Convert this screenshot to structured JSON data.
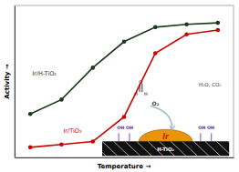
{
  "chart_data": {
    "type": "line",
    "x": [
      1,
      2,
      3,
      4,
      5,
      6,
      7
    ],
    "series": [
      {
        "name": "Ir/H-TiO₂",
        "color": "#1a3a1a",
        "marker": "circle",
        "values": [
          0.3,
          0.4,
          0.62,
          0.8,
          0.9,
          0.92,
          0.93
        ]
      },
      {
        "name": "Ir/TiO₂",
        "color": "#cc0000",
        "marker": "circle",
        "values": [
          0.07,
          0.09,
          0.11,
          0.28,
          0.72,
          0.85,
          0.88
        ]
      }
    ],
    "xlabel": "Temperature  →",
    "ylabel": "Activity  →",
    "xlim": [
      0.5,
      7.5
    ],
    "ylim": [
      0.0,
      1.05
    ],
    "xticks": [],
    "yticks": [],
    "tick_labels": false,
    "grid": false,
    "annotations": [
      "H-TiO₂",
      "Ir",
      "OH OH",
      "OH OH",
      "O₂",
      "H",
      "H",
      "O",
      "H₂O, CO₂"
    ]
  }
}
